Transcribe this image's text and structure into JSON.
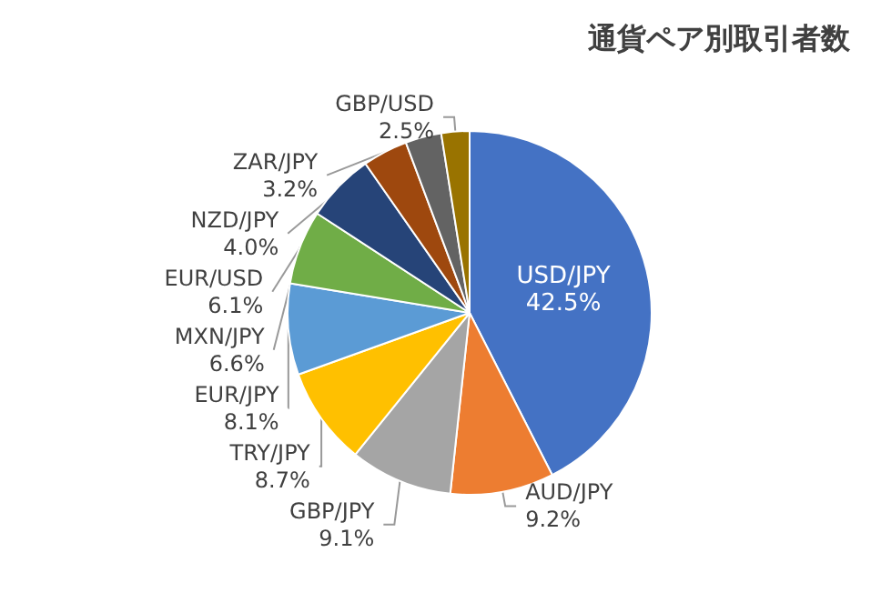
{
  "chart_data": {
    "type": "pie",
    "title": "通貨ペア別取引者数",
    "categories": [
      "USD/JPY",
      "AUD/JPY",
      "GBP/JPY",
      "TRY/JPY",
      "EUR/JPY",
      "MXN/JPY",
      "EUR/USD",
      "NZD/JPY",
      "ZAR/JPY",
      "GBP/USD"
    ],
    "values": [
      42.5,
      9.2,
      9.1,
      8.7,
      8.1,
      6.6,
      6.1,
      4.0,
      3.2,
      2.5
    ],
    "value_labels": [
      "42.5%",
      "9.2%",
      "9.1%",
      "8.7%",
      "8.1%",
      "6.6%",
      "6.1%",
      "4.0%",
      "3.2%",
      "2.5%"
    ],
    "colors": [
      "#4472c4",
      "#ed7d31",
      "#a5a5a5",
      "#ffc000",
      "#5b9bd5",
      "#70ad47",
      "#264478",
      "#9e480e",
      "#636363",
      "#997300"
    ],
    "legend": false
  }
}
